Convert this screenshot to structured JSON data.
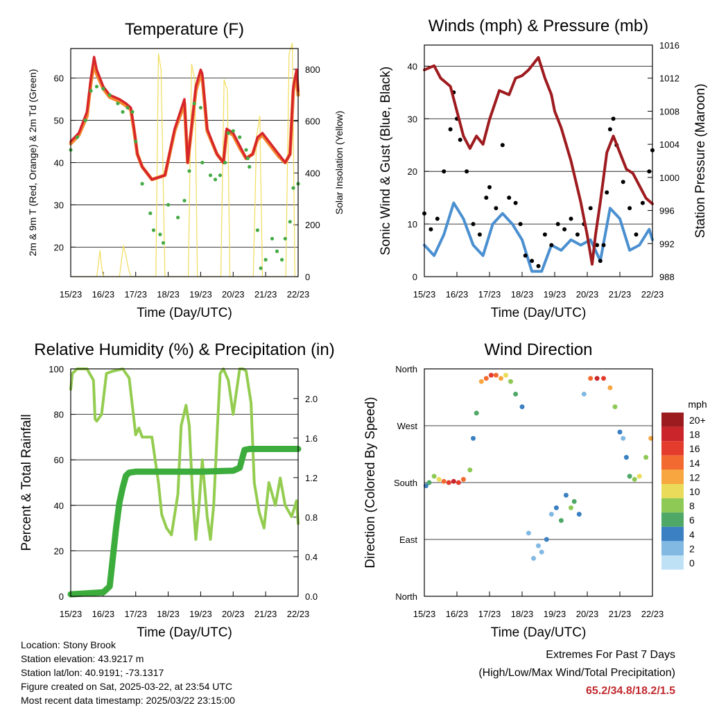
{
  "location_label": "Location: Stony Brook",
  "elevation_label": "Station elevation: 43.9217 m",
  "latlon_label": "Station lat/lon: 40.9191; -73.1317",
  "created_label": "Figure created on Sat, 2025-03-22, at 23:54 UTC",
  "recent_label": "Most recent data timestamp: 2025/03/22 23:15:00",
  "extremes": {
    "title": "Extremes For Past 7 Days",
    "subtitle": "(High/Low/Max Wind/Total Precipitation)",
    "values": "65.2/34.8/18.2/1.5"
  },
  "colors": {
    "temp_2m": "#d7262a",
    "temp_9m": "#f28a30",
    "dewpoint": "#44aa44",
    "insolation": "#f2dc5a",
    "gust": "#000000",
    "wind": "#4a8fd0",
    "pressure": "#9e1b1f",
    "rh": "#94cc50",
    "precip": "#3cac3c"
  },
  "chart_data": [
    {
      "type": "line",
      "title": "Temperature (F)",
      "xlabel": "Time (Day/UTC)",
      "ylabel": "2m & 9m T (Red, Orange) & 2m Td (Green)",
      "ylabel_right": "Solar Insolation (Yellow)",
      "x_ticks": [
        "15/23",
        "16/23",
        "17/23",
        "18/23",
        "19/23",
        "20/23",
        "21/23",
        "22/23"
      ],
      "xlim": [
        0,
        7
      ],
      "ylim": [
        13,
        67
      ],
      "y_ticks": [
        20,
        30,
        40,
        50,
        60
      ],
      "ylim_right": [
        0,
        880
      ],
      "y_ticks_right": [
        0,
        200,
        400,
        600,
        800
      ],
      "grid": true,
      "series": [
        {
          "name": "2m T",
          "style": "line",
          "x": [
            0,
            0.25,
            0.5,
            0.62,
            0.72,
            0.8,
            1,
            1.2,
            1.5,
            1.7,
            1.85,
            1.95,
            2.05,
            2.2,
            2.5,
            2.9,
            3.2,
            3.5,
            3.6,
            3.85,
            4,
            4.05,
            4.2,
            4.5,
            4.7,
            4.8,
            5,
            5.2,
            5.4,
            5.6,
            5.75,
            5.9,
            6.1,
            6.2,
            6.4,
            6.6,
            6.75,
            6.85,
            6.95,
            7
          ],
          "y": [
            45,
            47,
            52,
            60,
            65,
            62,
            58,
            56,
            55,
            54,
            53,
            48,
            42,
            39,
            36,
            37,
            48,
            55,
            40,
            58,
            62,
            61,
            48,
            42,
            40,
            48,
            47,
            44,
            41,
            42,
            46,
            47,
            45,
            44,
            42,
            40,
            42,
            58,
            62,
            57
          ]
        },
        {
          "name": "9m T",
          "style": "line",
          "x": [
            0,
            0.25,
            0.5,
            0.62,
            0.72,
            0.8,
            1,
            1.2,
            1.5,
            1.7,
            1.85,
            1.95,
            2.05,
            2.2,
            2.5,
            2.9,
            3.2,
            3.5,
            3.6,
            3.85,
            4,
            4.05,
            4.2,
            4.5,
            4.7,
            4.8,
            5,
            5.2,
            5.4,
            5.6,
            5.75,
            5.9,
            6.1,
            6.2,
            6.4,
            6.6,
            6.75,
            6.85,
            6.95,
            7
          ],
          "y": [
            44.5,
            46.5,
            51,
            59,
            63.5,
            61,
            57.5,
            55.5,
            54.5,
            53.5,
            52.5,
            47.5,
            42,
            39,
            36,
            37,
            47.5,
            54,
            40,
            57,
            61,
            60,
            47.5,
            42,
            40,
            47.5,
            46.5,
            43.5,
            41,
            42,
            45.5,
            46.5,
            44.5,
            43.5,
            41.5,
            40,
            42,
            57,
            61,
            56
          ]
        },
        {
          "name": "2m Td",
          "style": "points",
          "x": [
            0,
            0.2,
            0.45,
            0.62,
            0.8,
            1,
            1.2,
            1.45,
            1.6,
            1.75,
            1.9,
            2,
            2.2,
            2.45,
            2.55,
            2.75,
            2.85,
            3.0,
            3.3,
            3.5,
            3.65,
            3.8,
            4.0,
            4.05,
            4.3,
            4.45,
            4.6,
            4.75,
            4.85,
            5.0,
            5.2,
            5.4,
            5.45,
            5.5,
            5.75,
            5.85,
            6.0,
            6.2,
            6.35,
            6.5,
            6.6,
            6.75,
            6.85,
            7.0
          ],
          "y": [
            43,
            46,
            50,
            57,
            58,
            57.5,
            56,
            54,
            52,
            53,
            52,
            45,
            35,
            28,
            24,
            23,
            21,
            30,
            27,
            31,
            38,
            54,
            53,
            40,
            37,
            36,
            37,
            40,
            47,
            47.5,
            46,
            43,
            41,
            39,
            24,
            15,
            17,
            22,
            19,
            17,
            22,
            26,
            34,
            35
          ]
        },
        {
          "name": "Solar Insolation",
          "axis": "right",
          "style": "line",
          "x": [
            0,
            0.8,
            0.9,
            0.95,
            1.0,
            1.1,
            1.5,
            1.62,
            1.7,
            1.78,
            1.85,
            2.5,
            2.62,
            2.7,
            2.78,
            2.9,
            3.5,
            3.62,
            3.72,
            3.82,
            3.9,
            4.5,
            4.62,
            4.72,
            4.82,
            4.9,
            5.5,
            5.62,
            5.72,
            5.82,
            5.9,
            6.5,
            6.62,
            6.72,
            6.82,
            6.9,
            7.0
          ],
          "y": [
            0,
            0,
            100,
            40,
            0,
            0,
            0,
            120,
            80,
            30,
            0,
            0,
            0,
            860,
            800,
            0,
            0,
            0,
            820,
            760,
            0,
            0,
            0,
            760,
            720,
            0,
            0,
            0,
            540,
            620,
            0,
            0,
            0,
            860,
            900,
            0,
            0
          ]
        }
      ]
    },
    {
      "type": "scatter",
      "title": "Winds (mph) & Pressure (mb)",
      "xlabel": "Time (Day/UTC)",
      "ylabel": "Sonic Wind & Gust (Blue, Black)",
      "ylabel_right": "Station Pressure (Maroon)",
      "x_ticks": [
        "15/23",
        "16/23",
        "17/23",
        "18/23",
        "19/23",
        "20/23",
        "21/23",
        "22/23"
      ],
      "xlim": [
        0,
        7
      ],
      "ylim": [
        0,
        44
      ],
      "y_ticks": [
        0,
        10,
        20,
        30,
        40
      ],
      "ylim_right": [
        988,
        1016
      ],
      "y_ticks_right": [
        988,
        992,
        996,
        1000,
        1004,
        1008,
        1012,
        1016
      ],
      "grid": true,
      "series": [
        {
          "name": "Gust",
          "style": "points",
          "x": [
            0,
            0.2,
            0.4,
            0.6,
            0.8,
            0.9,
            1.0,
            1.1,
            1.3,
            1.5,
            1.7,
            1.9,
            2.0,
            2.2,
            2.4,
            2.6,
            2.8,
            2.95,
            3.1,
            3.3,
            3.5,
            3.7,
            3.9,
            4.1,
            4.3,
            4.5,
            4.7,
            4.9,
            5.1,
            5.3,
            5.4,
            5.5,
            5.6,
            5.7,
            5.8,
            5.9,
            6.1,
            6.3,
            6.5,
            6.7,
            6.9,
            7.0
          ],
          "y": [
            12,
            9,
            11,
            20,
            28,
            35,
            30,
            26,
            20,
            10,
            8,
            15,
            17,
            13,
            25,
            15,
            14,
            10,
            4,
            3,
            2,
            8,
            6,
            10,
            9,
            11,
            8,
            10,
            13,
            6,
            3,
            6,
            16,
            28,
            30,
            25,
            18,
            13,
            8,
            14,
            20,
            24
          ]
        },
        {
          "name": "Wind",
          "style": "line",
          "x": [
            0,
            0.3,
            0.6,
            0.9,
            1.2,
            1.5,
            1.8,
            2.1,
            2.4,
            2.7,
            3.0,
            3.3,
            3.6,
            3.9,
            4.2,
            4.5,
            4.8,
            5.1,
            5.4,
            5.7,
            6.0,
            6.3,
            6.6,
            6.9,
            7.0
          ],
          "y": [
            6,
            4,
            8,
            14,
            11,
            6,
            4,
            10,
            12,
            10,
            7,
            1,
            1,
            6,
            5,
            7,
            6,
            7,
            3,
            13,
            11,
            5,
            6,
            9,
            7
          ]
        },
        {
          "name": "Pressure",
          "axis": "right",
          "style": "line",
          "x": [
            0,
            0.3,
            0.5,
            0.8,
            1.0,
            1.2,
            1.4,
            1.6,
            1.8,
            2.0,
            2.3,
            2.6,
            2.8,
            3.0,
            3.2,
            3.5,
            3.7,
            3.9,
            4.0,
            4.2,
            4.5,
            4.8,
            5.0,
            5.15,
            5.25,
            5.4,
            5.6,
            5.8,
            6.0,
            6.2,
            6.4,
            6.6,
            6.8,
            7.0
          ],
          "y": [
            1013,
            1013.5,
            1012,
            1011,
            1008,
            1005,
            1003.5,
            1005,
            1004,
            1007,
            1010.5,
            1010,
            1012,
            1012.3,
            1013,
            1014.5,
            1012,
            1010,
            1008,
            1006,
            1002,
            997,
            993,
            989.5,
            993,
            997,
            1003,
            1005,
            1003,
            1001,
            1000.5,
            999,
            997.5,
            996.8
          ]
        }
      ]
    },
    {
      "type": "line",
      "title": "Relative Humidity (%) & Precipitation (in)",
      "xlabel": "Time (Day/UTC)",
      "ylabel": "Percent & Total Rainfall",
      "x_ticks": [
        "15/23",
        "16/23",
        "17/23",
        "18/23",
        "19/23",
        "20/23",
        "21/23",
        "22/23"
      ],
      "xlim": [
        0,
        7
      ],
      "ylim": [
        0,
        100
      ],
      "y_ticks": [
        0,
        20,
        40,
        60,
        80,
        100
      ],
      "ylim_right": [
        0,
        2.3
      ],
      "y_ticks_right": [
        0.0,
        0.4,
        0.8,
        1.2,
        1.6,
        2.0
      ],
      "grid": true,
      "series": [
        {
          "name": "RH",
          "style": "line",
          "x": [
            0,
            0.05,
            0.2,
            0.5,
            0.7,
            0.75,
            0.8,
            0.95,
            1.1,
            1.3,
            1.6,
            1.8,
            2.0,
            2.1,
            2.2,
            2.5,
            2.7,
            2.8,
            2.95,
            3.1,
            3.3,
            3.4,
            3.55,
            3.65,
            3.75,
            3.85,
            3.95,
            4.05,
            4.2,
            4.3,
            4.4,
            4.5,
            4.6,
            4.7,
            4.85,
            5.0,
            5.2,
            5.3,
            5.4,
            5.55,
            5.65,
            5.8,
            5.95,
            6.1,
            6.3,
            6.45,
            6.6,
            6.8,
            6.95,
            7.0
          ],
          "y": [
            91,
            98,
            100,
            100,
            95,
            78,
            77,
            80,
            98,
            99,
            100,
            96,
            71,
            74,
            70,
            70,
            50,
            36,
            30,
            27,
            45,
            75,
            84,
            75,
            45,
            25,
            40,
            60,
            35,
            25,
            40,
            70,
            98,
            100,
            95,
            80,
            100,
            100,
            99,
            85,
            50,
            37,
            30,
            50,
            40,
            52,
            40,
            35,
            42,
            32
          ]
        },
        {
          "name": "Precipitation",
          "axis": "right",
          "style": "line",
          "x": [
            0,
            0.5,
            1.0,
            1.2,
            1.3,
            1.4,
            1.5,
            1.6,
            1.7,
            1.8,
            2.0,
            3.0,
            4.0,
            5.0,
            5.2,
            5.35,
            5.5,
            6.0,
            6.5,
            7.0
          ],
          "y": [
            0.02,
            0.03,
            0.04,
            0.1,
            0.4,
            0.7,
            0.95,
            1.1,
            1.22,
            1.25,
            1.26,
            1.26,
            1.26,
            1.27,
            1.3,
            1.48,
            1.49,
            1.49,
            1.49,
            1.49
          ]
        }
      ]
    },
    {
      "type": "scatter",
      "title": "Wind Direction",
      "xlabel": "Time (Day/UTC)",
      "ylabel": "Direction (Colored By Speed)",
      "x_ticks": [
        "15/23",
        "16/23",
        "17/23",
        "18/23",
        "19/23",
        "20/23",
        "21/23",
        "22/23"
      ],
      "xlim": [
        0,
        7
      ],
      "y_categories": [
        "North",
        "East",
        "South",
        "West",
        "North"
      ],
      "ylim": [
        0,
        360
      ],
      "legend_title": "mph",
      "legend_labels": [
        "20+",
        "18",
        "16",
        "14",
        "12",
        "10",
        "8",
        "6",
        "4",
        "2",
        "0"
      ],
      "legend_colors": [
        "#9b1b1e",
        "#c9252b",
        "#e43c2c",
        "#f26a2f",
        "#f7a640",
        "#eadc5a",
        "#8ec855",
        "#4fa866",
        "#3b80c2",
        "#82b9e2",
        "#bfe1f5"
      ],
      "series": [
        {
          "name": "direction",
          "style": "points",
          "x": [
            0.05,
            0.15,
            0.3,
            0.45,
            0.6,
            0.75,
            0.9,
            1.05,
            1.2,
            1.4,
            1.5,
            1.6,
            1.75,
            1.9,
            2.05,
            2.2,
            2.35,
            2.5,
            2.65,
            2.8,
            3.0,
            3.2,
            3.35,
            3.5,
            3.6,
            3.75,
            3.9,
            4.05,
            4.2,
            4.35,
            4.5,
            4.6,
            4.75,
            4.9,
            5.1,
            5.3,
            5.5,
            5.7,
            5.85,
            6.0,
            6.1,
            6.2,
            6.3,
            6.45,
            6.6,
            6.8,
            6.95
          ],
          "y": [
            175,
            180,
            190,
            185,
            182,
            180,
            182,
            180,
            185,
            200,
            250,
            290,
            340,
            345,
            350,
            350,
            345,
            350,
            340,
            320,
            300,
            100,
            60,
            80,
            70,
            90,
            130,
            140,
            120,
            160,
            140,
            150,
            130,
            320,
            345,
            345,
            345,
            330,
            300,
            260,
            250,
            220,
            190,
            185,
            190,
            220,
            250
          ],
          "speed": [
            4,
            6,
            8,
            10,
            14,
            16,
            18,
            16,
            14,
            8,
            4,
            6,
            12,
            14,
            16,
            14,
            12,
            10,
            8,
            6,
            4,
            2,
            2,
            2,
            2,
            4,
            2,
            4,
            6,
            4,
            8,
            6,
            4,
            2,
            14,
            18,
            16,
            12,
            8,
            4,
            2,
            4,
            6,
            8,
            10,
            8,
            12
          ]
        }
      ]
    }
  ]
}
